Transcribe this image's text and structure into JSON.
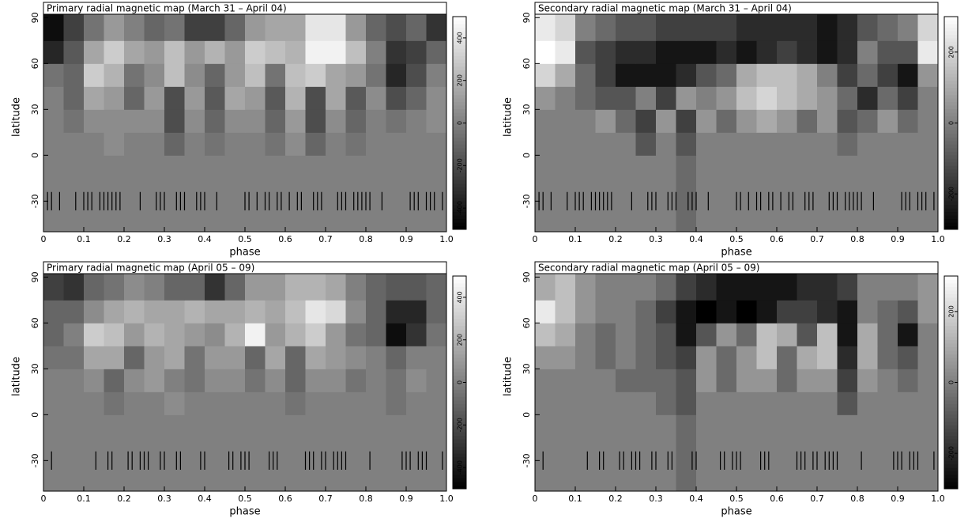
{
  "chart_data": [
    {
      "type": "heatmap",
      "title": "Primary radial magnetic map (March 31 – April 04)",
      "xlabel": "phase",
      "ylabel": "latitude",
      "xlim": [
        0,
        1
      ],
      "xticks": [
        0,
        0.1,
        0.2,
        0.3,
        0.4,
        0.5,
        0.6,
        0.7,
        0.8,
        0.9,
        {
          "value": 1,
          "label": "1.0"
        }
      ],
      "ylim": [
        -50,
        100
      ],
      "yticks": [
        -30,
        0,
        30,
        60,
        90
      ],
      "xbins": [
        0,
        0.05,
        0.1,
        0.15,
        0.2,
        0.25,
        0.3,
        0.35,
        0.4,
        0.45,
        0.5,
        0.55,
        0.6,
        0.65,
        0.7,
        0.75,
        0.8,
        0.85,
        0.9,
        0.95,
        1
      ],
      "ybins": [
        -50,
        0,
        15,
        30,
        45,
        60,
        75,
        100
      ],
      "z": [
        [
          0,
          0,
          0,
          0,
          0,
          0,
          0,
          0,
          0,
          0,
          0,
          0,
          0,
          0,
          0,
          0,
          0,
          0,
          0,
          0
        ],
        [
          0,
          0,
          0,
          50,
          0,
          0,
          -100,
          0,
          -50,
          0,
          0,
          -50,
          50,
          -100,
          0,
          -50,
          0,
          0,
          0,
          0
        ],
        [
          0,
          -50,
          50,
          50,
          50,
          50,
          -200,
          50,
          -100,
          50,
          50,
          -100,
          100,
          -200,
          50,
          -100,
          0,
          -50,
          0,
          50
        ],
        [
          0,
          -100,
          150,
          100,
          -100,
          100,
          -200,
          100,
          -150,
          150,
          100,
          -150,
          200,
          -200,
          150,
          -150,
          50,
          -200,
          -100,
          50
        ],
        [
          -50,
          -100,
          300,
          200,
          -50,
          50,
          250,
          50,
          -100,
          100,
          250,
          -50,
          250,
          300,
          150,
          100,
          -50,
          -350,
          -200,
          0
        ],
        [
          -350,
          -150,
          150,
          300,
          150,
          100,
          250,
          100,
          200,
          100,
          300,
          250,
          200,
          450,
          450,
          250,
          0,
          -300,
          -250,
          -100
        ],
        [
          -450,
          -250,
          -50,
          100,
          0,
          -100,
          -50,
          -250,
          -250,
          -100,
          100,
          150,
          150,
          400,
          400,
          100,
          -100,
          -200,
          -100,
          -300
        ]
      ],
      "zlim": [
        -500,
        500
      ],
      "zticks": [
        -400,
        -200,
        0,
        200,
        400
      ],
      "colorscale": [
        "#000000",
        "#ffffff"
      ],
      "observed_phases": [
        0.01,
        0.02,
        0.04,
        0.08,
        0.1,
        0.11,
        0.12,
        0.14,
        0.15,
        0.16,
        0.17,
        0.18,
        0.19,
        0.24,
        0.28,
        0.29,
        0.3,
        0.33,
        0.34,
        0.35,
        0.38,
        0.39,
        0.4,
        0.43,
        0.5,
        0.51,
        0.53,
        0.55,
        0.56,
        0.58,
        0.59,
        0.61,
        0.63,
        0.64,
        0.67,
        0.68,
        0.69,
        0.73,
        0.74,
        0.75,
        0.77,
        0.78,
        0.79,
        0.8,
        0.81,
        0.84,
        0.91,
        0.92,
        0.93,
        0.95,
        0.96,
        0.97,
        0.99
      ]
    },
    {
      "type": "heatmap",
      "title": "Secondary radial magnetic map (March 31 – April 04)",
      "xlabel": "phase",
      "ylabel": "latitude",
      "xlim": [
        0,
        1
      ],
      "xticks": [
        0,
        0.1,
        0.2,
        0.3,
        0.4,
        0.5,
        0.6,
        0.7,
        0.8,
        0.9,
        {
          "value": 1,
          "label": "1.0"
        }
      ],
      "ylim": [
        -50,
        100
      ],
      "yticks": [
        -30,
        0,
        30,
        60,
        90
      ],
      "xbins": [
        0,
        0.05,
        0.1,
        0.15,
        0.2,
        0.25,
        0.3,
        0.35,
        0.4,
        0.45,
        0.5,
        0.55,
        0.6,
        0.65,
        0.7,
        0.75,
        0.8,
        0.85,
        0.9,
        0.95,
        1
      ],
      "ybins": [
        -50,
        0,
        15,
        30,
        45,
        60,
        75,
        100
      ],
      "z": [
        [
          0,
          0,
          0,
          0,
          0,
          0,
          0,
          -50,
          0,
          0,
          0,
          0,
          0,
          0,
          0,
          0,
          0,
          0,
          0,
          0
        ],
        [
          0,
          0,
          0,
          0,
          0,
          -100,
          0,
          -100,
          0,
          0,
          0,
          0,
          0,
          0,
          0,
          -50,
          0,
          0,
          0,
          0
        ],
        [
          0,
          0,
          0,
          50,
          -50,
          -150,
          50,
          -150,
          50,
          -50,
          50,
          100,
          50,
          -50,
          50,
          -100,
          -50,
          50,
          -50,
          0
        ],
        [
          50,
          0,
          -50,
          -100,
          -100,
          0,
          -150,
          50,
          0,
          50,
          150,
          200,
          150,
          100,
          50,
          -50,
          -200,
          -50,
          -150,
          0
        ],
        [
          200,
          100,
          -50,
          -150,
          -250,
          -250,
          -250,
          -200,
          -100,
          -50,
          100,
          150,
          150,
          100,
          0,
          -150,
          -50,
          -150,
          -250,
          50
        ],
        [
          300,
          250,
          -100,
          -150,
          -200,
          -200,
          -250,
          -250,
          -250,
          -200,
          -250,
          -200,
          -150,
          -200,
          -250,
          -200,
          0,
          -100,
          -100,
          250
        ],
        [
          250,
          200,
          0,
          -50,
          -100,
          -100,
          -150,
          -150,
          -150,
          -150,
          -200,
          -200,
          -200,
          -200,
          -250,
          -200,
          -100,
          -50,
          0,
          200
        ]
      ],
      "zlim": [
        -300,
        300
      ],
      "zticks": [
        -200,
        0,
        200
      ],
      "colorscale": [
        "#000000",
        "#ffffff"
      ],
      "observed_phases": [
        0.01,
        0.02,
        0.04,
        0.08,
        0.1,
        0.11,
        0.12,
        0.14,
        0.15,
        0.16,
        0.17,
        0.18,
        0.19,
        0.24,
        0.28,
        0.29,
        0.3,
        0.33,
        0.34,
        0.35,
        0.38,
        0.39,
        0.4,
        0.43,
        0.5,
        0.51,
        0.53,
        0.55,
        0.56,
        0.58,
        0.59,
        0.61,
        0.63,
        0.64,
        0.67,
        0.68,
        0.69,
        0.73,
        0.74,
        0.75,
        0.77,
        0.78,
        0.79,
        0.8,
        0.81,
        0.84,
        0.91,
        0.92,
        0.93,
        0.95,
        0.96,
        0.97,
        0.99
      ]
    },
    {
      "type": "heatmap",
      "title": "Primary radial magnetic map (April 05 – 09)",
      "xlabel": "phase",
      "ylabel": "latitude",
      "xlim": [
        0,
        1
      ],
      "xticks": [
        0,
        0.1,
        0.2,
        0.3,
        0.4,
        0.5,
        0.6,
        0.7,
        0.8,
        0.9,
        {
          "value": 1,
          "label": "1.0"
        }
      ],
      "ylim": [
        -50,
        100
      ],
      "yticks": [
        -30,
        0,
        30,
        60,
        90
      ],
      "xbins": [
        0,
        0.05,
        0.1,
        0.15,
        0.2,
        0.25,
        0.3,
        0.35,
        0.4,
        0.45,
        0.5,
        0.55,
        0.6,
        0.65,
        0.7,
        0.75,
        0.8,
        0.85,
        0.9,
        0.95,
        1
      ],
      "ybins": [
        -50,
        0,
        15,
        30,
        45,
        60,
        75,
        100
      ],
      "z": [
        [
          0,
          0,
          0,
          0,
          0,
          0,
          0,
          0,
          0,
          0,
          0,
          0,
          0,
          0,
          0,
          0,
          0,
          0,
          0,
          0
        ],
        [
          0,
          0,
          0,
          -50,
          0,
          0,
          50,
          0,
          0,
          0,
          0,
          0,
          -50,
          0,
          0,
          0,
          0,
          -50,
          0,
          0
        ],
        [
          0,
          0,
          50,
          -100,
          50,
          100,
          0,
          -50,
          50,
          50,
          -50,
          50,
          -100,
          50,
          50,
          -50,
          0,
          -50,
          50,
          0
        ],
        [
          -50,
          -50,
          150,
          150,
          -100,
          100,
          150,
          -50,
          100,
          100,
          -100,
          150,
          -100,
          150,
          100,
          50,
          0,
          -100,
          0,
          0
        ],
        [
          -100,
          0,
          300,
          250,
          100,
          200,
          150,
          100,
          50,
          200,
          450,
          100,
          200,
          300,
          100,
          -50,
          -100,
          -450,
          -300,
          -50
        ],
        [
          -100,
          -100,
          50,
          150,
          200,
          150,
          150,
          200,
          150,
          150,
          200,
          150,
          250,
          400,
          350,
          50,
          -100,
          -350,
          -350,
          -100
        ],
        [
          -250,
          -300,
          -100,
          -50,
          50,
          0,
          -100,
          -100,
          -300,
          -100,
          100,
          100,
          200,
          200,
          150,
          0,
          -100,
          -150,
          -150,
          -100
        ]
      ],
      "zlim": [
        -500,
        500
      ],
      "zticks": [
        -400,
        -200,
        0,
        200,
        400
      ],
      "colorscale": [
        "#000000",
        "#ffffff"
      ],
      "observed_phases": [
        0.02,
        0.13,
        0.16,
        0.17,
        0.21,
        0.22,
        0.24,
        0.25,
        0.26,
        0.29,
        0.3,
        0.33,
        0.34,
        0.39,
        0.4,
        0.46,
        0.47,
        0.49,
        0.5,
        0.51,
        0.56,
        0.57,
        0.58,
        0.65,
        0.66,
        0.67,
        0.69,
        0.7,
        0.72,
        0.73,
        0.74,
        0.75,
        0.81,
        0.89,
        0.9,
        0.91,
        0.93,
        0.94,
        0.95,
        0.99
      ]
    },
    {
      "type": "heatmap",
      "title": "Secondary radial magnetic map (April 05 – 09)",
      "xlabel": "phase",
      "ylabel": "latitude",
      "xlim": [
        0,
        1
      ],
      "xticks": [
        0,
        0.1,
        0.2,
        0.3,
        0.4,
        0.5,
        0.6,
        0.7,
        0.8,
        0.9,
        {
          "value": 1,
          "label": "1.0"
        }
      ],
      "ylim": [
        -50,
        100
      ],
      "yticks": [
        -30,
        0,
        30,
        60,
        90
      ],
      "xbins": [
        0,
        0.05,
        0.1,
        0.15,
        0.2,
        0.25,
        0.3,
        0.35,
        0.4,
        0.45,
        0.5,
        0.55,
        0.6,
        0.65,
        0.7,
        0.75,
        0.8,
        0.85,
        0.9,
        0.95,
        1
      ],
      "ybins": [
        -50,
        0,
        15,
        30,
        45,
        60,
        75,
        100
      ],
      "z": [
        [
          0,
          0,
          0,
          0,
          0,
          0,
          0,
          -50,
          0,
          0,
          0,
          0,
          0,
          0,
          0,
          0,
          0,
          0,
          0,
          0
        ],
        [
          0,
          0,
          0,
          0,
          0,
          0,
          -50,
          -100,
          0,
          0,
          0,
          0,
          0,
          0,
          0,
          -100,
          0,
          0,
          0,
          0
        ],
        [
          0,
          0,
          0,
          0,
          -50,
          -50,
          -50,
          -100,
          50,
          -50,
          50,
          50,
          -50,
          50,
          50,
          -150,
          50,
          0,
          -50,
          0
        ],
        [
          50,
          50,
          0,
          -50,
          0,
          -50,
          -100,
          -150,
          50,
          -50,
          50,
          150,
          -50,
          100,
          150,
          -200,
          100,
          -50,
          -100,
          0
        ],
        [
          150,
          100,
          0,
          -50,
          0,
          -50,
          -100,
          -250,
          -100,
          50,
          -50,
          150,
          100,
          -100,
          150,
          -250,
          100,
          -50,
          -250,
          0
        ],
        [
          250,
          150,
          50,
          0,
          0,
          -50,
          -150,
          -250,
          -300,
          -250,
          -300,
          -250,
          -150,
          -150,
          -200,
          -250,
          0,
          -50,
          -100,
          50
        ],
        [
          100,
          150,
          50,
          0,
          0,
          0,
          -50,
          -150,
          -200,
          -250,
          -250,
          -250,
          -250,
          -200,
          -200,
          -150,
          0,
          0,
          0,
          50
        ]
      ],
      "zlim": [
        -300,
        300
      ],
      "zticks": [
        -200,
        0,
        200
      ],
      "colorscale": [
        "#000000",
        "#ffffff"
      ],
      "observed_phases": [
        0.02,
        0.13,
        0.16,
        0.17,
        0.21,
        0.22,
        0.24,
        0.25,
        0.26,
        0.29,
        0.3,
        0.33,
        0.34,
        0.39,
        0.4,
        0.46,
        0.47,
        0.49,
        0.5,
        0.51,
        0.56,
        0.57,
        0.58,
        0.65,
        0.66,
        0.67,
        0.69,
        0.7,
        0.72,
        0.73,
        0.74,
        0.75,
        0.81,
        0.89,
        0.9,
        0.91,
        0.93,
        0.94,
        0.95,
        0.99
      ]
    }
  ]
}
